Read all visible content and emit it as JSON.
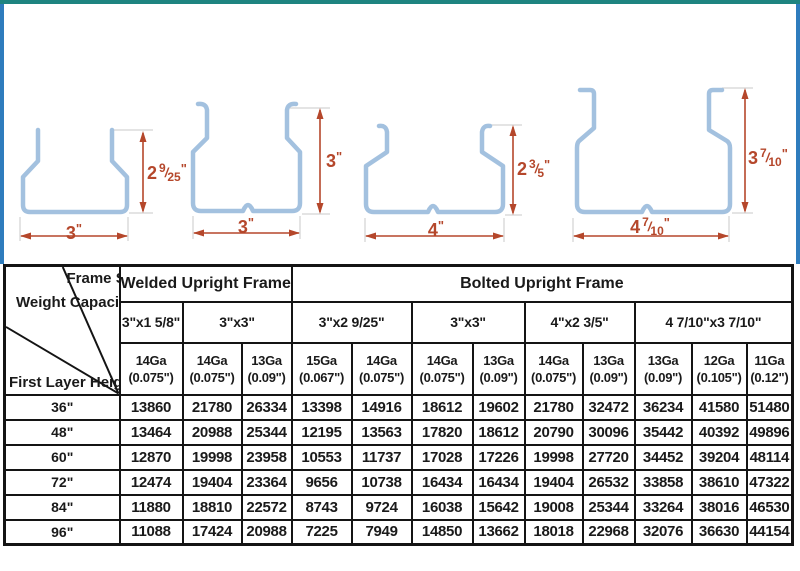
{
  "colors": {
    "top_border": "#1e8480",
    "side_border": "#2e7cbd",
    "profile_steel": "#a3c1df",
    "dimension_red": "#b5472b",
    "table_border": "#141414",
    "text": "#1a1a1a",
    "background": "#ffffff"
  },
  "diagram": {
    "profiles": [
      {
        "id": "3in x 2 9/25in upright profile",
        "width": {
          "whole": "3",
          "num": "",
          "slash": "",
          "den": "",
          "unit": "\""
        },
        "height": {
          "whole": "2",
          "num": "9",
          "slash": "/",
          "den": "25",
          "unit": "\""
        }
      },
      {
        "id": "3in x 3in upright profile",
        "width": {
          "whole": "3",
          "num": "",
          "slash": "",
          "den": "",
          "unit": "\""
        },
        "height": {
          "whole": "3",
          "num": "",
          "slash": "",
          "den": "",
          "unit": "\""
        }
      },
      {
        "id": "4in x 2 3/5in upright profile",
        "width": {
          "whole": "4",
          "num": "",
          "slash": "",
          "den": "",
          "unit": "\""
        },
        "height": {
          "whole": "2",
          "num": "3",
          "slash": "/",
          "den": "5",
          "unit": "\""
        }
      },
      {
        "id": "4 7/10in x 3 7/10in upright profile",
        "width": {
          "whole": "4",
          "num": "7",
          "slash": "/",
          "den": "10",
          "unit": "\""
        },
        "height": {
          "whole": "3",
          "num": "7",
          "slash": "/",
          "den": "10",
          "unit": "\""
        }
      }
    ]
  },
  "table": {
    "corner": {
      "frame_spec": "Frame Spec.",
      "weight_capacity": "Weight Capacity (Lbs)",
      "first_layer_height": "First Layer Height"
    },
    "groups": [
      {
        "label": "Welded Upright Frame"
      },
      {
        "label": "Bolted Upright Frame"
      }
    ],
    "specs": [
      {
        "label": "3\"x1 5/8\""
      },
      {
        "label": "3\"x3\""
      },
      {
        "label": "3\"x2 9/25\""
      },
      {
        "label": "3\"x3\""
      },
      {
        "label": "4\"x2 3/5\""
      },
      {
        "label": "4 7/10\"x3 7/10\""
      }
    ],
    "gauges": [
      {
        "ga": "14Ga",
        "thickness": "(0.075\")"
      },
      {
        "ga": "14Ga",
        "thickness": "(0.075\")"
      },
      {
        "ga": "13Ga",
        "thickness": "(0.09\")"
      },
      {
        "ga": "15Ga",
        "thickness": "(0.067\")"
      },
      {
        "ga": "14Ga",
        "thickness": "(0.075\")"
      },
      {
        "ga": "14Ga",
        "thickness": "(0.075\")"
      },
      {
        "ga": "13Ga",
        "thickness": "(0.09\")"
      },
      {
        "ga": "14Ga",
        "thickness": "(0.075\")"
      },
      {
        "ga": "13Ga",
        "thickness": "(0.09\")"
      },
      {
        "ga": "13Ga",
        "thickness": "(0.09\")"
      },
      {
        "ga": "12Ga",
        "thickness": "(0.105\")"
      },
      {
        "ga": "11Ga",
        "thickness": "(0.12\")"
      }
    ],
    "rows": [
      {
        "height": "36\"",
        "values": [
          13860,
          21780,
          26334,
          13398,
          14916,
          18612,
          19602,
          21780,
          32472,
          36234,
          41580,
          51480
        ]
      },
      {
        "height": "48\"",
        "values": [
          13464,
          20988,
          25344,
          12195,
          13563,
          17820,
          18612,
          20790,
          30096,
          35442,
          40392,
          49896
        ]
      },
      {
        "height": "60\"",
        "values": [
          12870,
          19998,
          23958,
          10553,
          11737,
          17028,
          17226,
          19998,
          27720,
          34452,
          39204,
          48114
        ]
      },
      {
        "height": "72\"",
        "values": [
          12474,
          19404,
          23364,
          9656,
          10738,
          16434,
          16434,
          19404,
          26532,
          33858,
          38610,
          47322
        ]
      },
      {
        "height": "84\"",
        "values": [
          11880,
          18810,
          22572,
          8743,
          9724,
          16038,
          15642,
          19008,
          25344,
          33264,
          38016,
          46530
        ]
      },
      {
        "height": "96\"",
        "values": [
          11088,
          17424,
          20988,
          7225,
          7949,
          14850,
          13662,
          18018,
          22968,
          32076,
          36630,
          44154
        ]
      }
    ]
  }
}
